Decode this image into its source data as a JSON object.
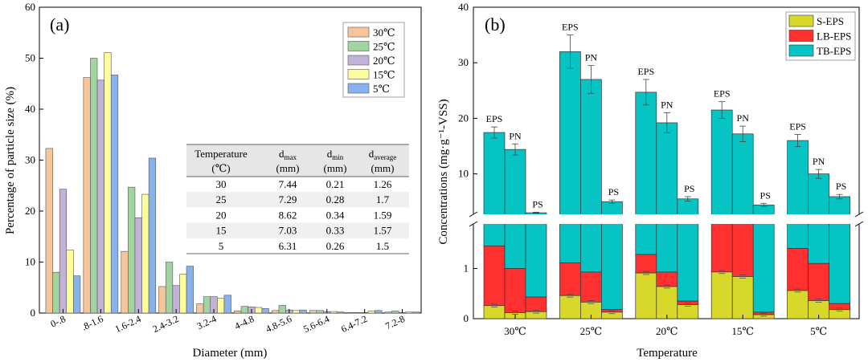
{
  "chart_data": [
    {
      "type": "bar",
      "panel_label": "(a)",
      "xlabel": "Diameter (mm)",
      "ylabel": "Percentage of particle size (%)",
      "ylim": [
        0,
        60
      ],
      "yticks": [
        0,
        10,
        20,
        30,
        40,
        50,
        60
      ],
      "categories": [
        "0-.8",
        ".8-1.6",
        "1.6-2.4",
        "2.4-3.2",
        "3.2-4",
        "4-4.8",
        "4.8-5.6",
        "5.6-6.4",
        "6.4-7.2",
        "7.2-8"
      ],
      "series": [
        {
          "name": "30℃",
          "color": "#f8c49a",
          "values": [
            32.3,
            46.2,
            12.1,
            5.2,
            1.8,
            0.4,
            0.5,
            0.5,
            0.1,
            0.2
          ]
        },
        {
          "name": "25℃",
          "color": "#a2d4a2",
          "values": [
            8.0,
            50.0,
            24.7,
            10.0,
            3.2,
            1.3,
            1.5,
            0.5,
            0.1,
            0.4
          ]
        },
        {
          "name": "20℃",
          "color": "#c2b2d8",
          "values": [
            24.3,
            45.7,
            18.7,
            5.4,
            3.2,
            1.2,
            0.6,
            0.3,
            0.1,
            0.1
          ]
        },
        {
          "name": "15℃",
          "color": "#fdfd9c",
          "values": [
            12.4,
            51.1,
            23.3,
            7.6,
            2.9,
            1.1,
            0.5,
            0.3,
            0.4,
            0.2
          ]
        },
        {
          "name": "5℃",
          "color": "#89b1ee",
          "values": [
            7.3,
            46.7,
            30.4,
            9.2,
            3.5,
            0.9,
            0.6,
            0.2,
            0.5,
            0.2
          ]
        }
      ],
      "table": {
        "headers": [
          {
            "main": "Temperature",
            "sub": "",
            "line2": "(℃)"
          },
          {
            "main": "d",
            "sub": "max",
            "line2": "(mm)"
          },
          {
            "main": "d",
            "sub": "min",
            "line2": "(mm)"
          },
          {
            "main": "d",
            "sub": "average",
            "line2": "(mm)"
          }
        ],
        "rows": [
          [
            "30",
            "7.44",
            "0.21",
            "1.26"
          ],
          [
            "25",
            "7.29",
            "0.28",
            "1.7"
          ],
          [
            "20",
            "8.62",
            "0.34",
            "1.59"
          ],
          [
            "15",
            "7.03",
            "0.33",
            "1.57"
          ],
          [
            "5",
            "6.31",
            "0.26",
            "1.5"
          ]
        ]
      }
    },
    {
      "type": "stacked_bar",
      "panel_label": "(b)",
      "xlabel": "Temperature",
      "ylabel": "Concentrations (mg·g⁻¹-VSS)",
      "axis_break": true,
      "lower_ylim": [
        0,
        2
      ],
      "lower_yticks": [
        0,
        1
      ],
      "upper_ylim": [
        2,
        40
      ],
      "upper_yticks": [
        10,
        20,
        30,
        40
      ],
      "groups": [
        "30℃",
        "25℃",
        "20℃",
        "15℃",
        "5℃"
      ],
      "bar_labels": [
        "EPS",
        "PN",
        "PS"
      ],
      "components": [
        {
          "name": "S-EPS",
          "color": "#d8d82a"
        },
        {
          "name": "LB-EPS",
          "color": "#ff3030"
        },
        {
          "name": "TB-EPS",
          "color": "#06c4c4"
        }
      ],
      "bars": [
        {
          "group": "30℃",
          "label": "EPS",
          "s": 0.26,
          "lb": 1.19,
          "tb": 16.0,
          "total": 17.45,
          "err": 1.0
        },
        {
          "group": "30℃",
          "label": "PN",
          "s": 0.12,
          "lb": 0.88,
          "tb": 13.4,
          "total": 14.4,
          "err": 1.0
        },
        {
          "group": "30℃",
          "label": "PS",
          "s": 0.14,
          "lb": 0.29,
          "tb": 2.57,
          "total": 3.0,
          "err": 0.1
        },
        {
          "group": "25℃",
          "label": "EPS",
          "s": 0.46,
          "lb": 0.65,
          "tb": 30.89,
          "total": 32.0,
          "err": 3.0
        },
        {
          "group": "25℃",
          "label": "PN",
          "s": 0.33,
          "lb": 0.6,
          "tb": 26.07,
          "total": 27.0,
          "err": 2.5
        },
        {
          "group": "25℃",
          "label": "PS",
          "s": 0.13,
          "lb": 0.05,
          "tb": 4.82,
          "total": 5.0,
          "err": 0.3
        },
        {
          "group": "20℃",
          "label": "EPS",
          "s": 0.91,
          "lb": 0.37,
          "tb": 23.42,
          "total": 24.7,
          "err": 2.3
        },
        {
          "group": "20℃",
          "label": "PN",
          "s": 0.64,
          "lb": 0.29,
          "tb": 18.27,
          "total": 19.2,
          "err": 1.8
        },
        {
          "group": "20℃",
          "label": "PS",
          "s": 0.28,
          "lb": 0.07,
          "tb": 5.15,
          "total": 5.5,
          "err": 0.4
        },
        {
          "group": "15℃",
          "label": "EPS",
          "s": 0.93,
          "lb": 1.07,
          "tb": 19.5,
          "total": 21.5,
          "err": 1.5
        },
        {
          "group": "15℃",
          "label": "PN",
          "s": 0.84,
          "lb": 1.06,
          "tb": 15.3,
          "total": 17.2,
          "err": 1.4
        },
        {
          "group": "15℃",
          "label": "PS",
          "s": 0.08,
          "lb": 0.05,
          "tb": 4.27,
          "total": 4.4,
          "err": 0.3
        },
        {
          "group": "5℃",
          "label": "EPS",
          "s": 0.56,
          "lb": 0.84,
          "tb": 14.6,
          "total": 16.0,
          "err": 1.1
        },
        {
          "group": "5℃",
          "label": "PN",
          "s": 0.36,
          "lb": 0.74,
          "tb": 8.9,
          "total": 10.0,
          "err": 0.8
        },
        {
          "group": "5℃",
          "label": "PS",
          "s": 0.18,
          "lb": 0.12,
          "tb": 5.6,
          "total": 5.9,
          "err": 0.4
        }
      ]
    }
  ]
}
